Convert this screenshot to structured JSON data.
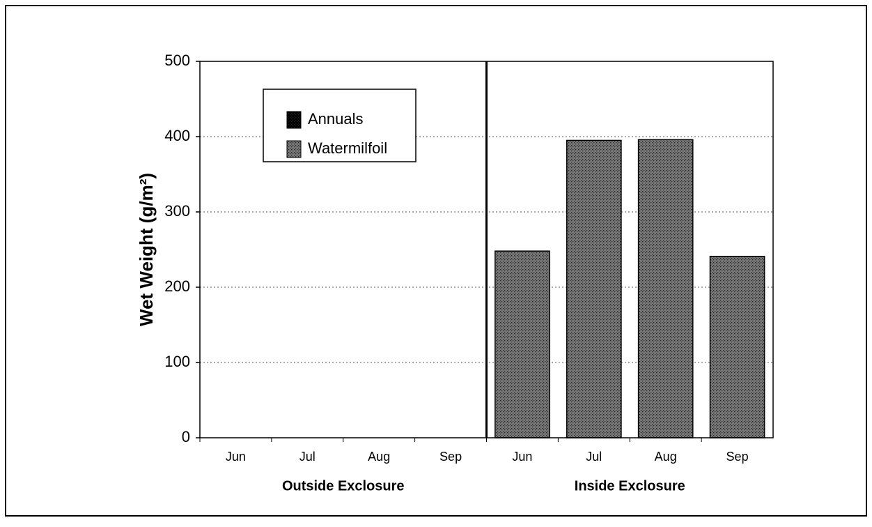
{
  "chart_data": {
    "type": "bar",
    "stacked": true,
    "y_label": "Wet Weight (g/m²)",
    "categories": [
      "Jun",
      "Jul",
      "Aug",
      "Sep",
      "Jun",
      "Jul",
      "Aug",
      "Sep"
    ],
    "groups": [
      "Outside Exclosure",
      "Inside Exclosure"
    ],
    "series": [
      {
        "name": "Annuals",
        "color": "#000000",
        "values": [
          0,
          0,
          0,
          0,
          0,
          0,
          0,
          0
        ]
      },
      {
        "name": "Watermilfoil",
        "color": "#7a7a7a",
        "values": [
          0,
          0,
          0,
          0,
          248,
          395,
          396,
          241
        ]
      }
    ],
    "ylim": [
      0,
      500
    ],
    "yticks": [
      0,
      100,
      200,
      300,
      400,
      500
    ],
    "grid": true
  }
}
